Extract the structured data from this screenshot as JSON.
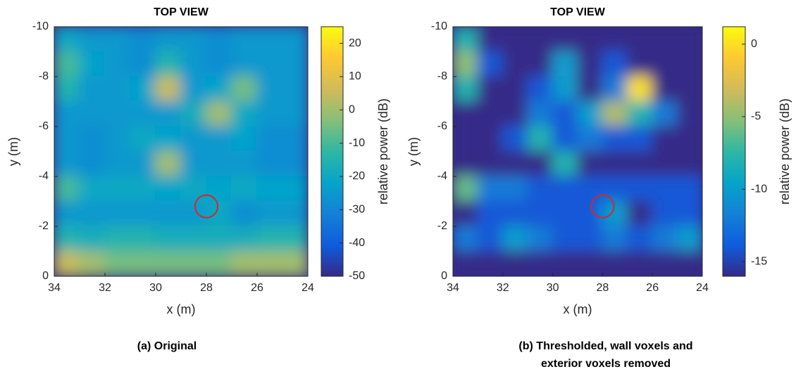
{
  "chart_data": [
    {
      "type": "heatmap",
      "title": "TOP VIEW",
      "xlabel": "x (m)",
      "ylabel": "y (m)",
      "colorbar_label": "relative power (dB)",
      "caption": [
        "(a) Original"
      ],
      "xlim": [
        34,
        24
      ],
      "xticks": [
        34,
        32,
        30,
        28,
        26,
        24
      ],
      "ylim": [
        0,
        -10
      ],
      "yticks": [
        0,
        -2,
        -4,
        -6,
        -8,
        -10
      ],
      "clim": [
        -50,
        25
      ],
      "cticks": [
        -50,
        -40,
        -30,
        -20,
        -10,
        0,
        10,
        20
      ],
      "colormap": [
        "#352a87",
        "#0f5cdd",
        "#1481d6",
        "#06a4ca",
        "#2eb7a4",
        "#87bf77",
        "#d1bb59",
        "#fec832",
        "#f9fb0e"
      ],
      "z": [
        [
          -20,
          -25,
          -25,
          -28,
          -25,
          -25,
          -28,
          -25,
          -25,
          -25
        ],
        [
          -10,
          -22,
          -25,
          -28,
          -15,
          -25,
          -28,
          -25,
          -25,
          -25
        ],
        [
          -15,
          -25,
          -25,
          -22,
          5,
          -25,
          -22,
          -5,
          -25,
          -25
        ],
        [
          -25,
          -25,
          -25,
          -25,
          -25,
          -18,
          0,
          -20,
          -25,
          -25
        ],
        [
          -25,
          -28,
          -25,
          -20,
          -22,
          -25,
          -25,
          -22,
          -28,
          -28
        ],
        [
          -25,
          -28,
          -25,
          -25,
          0,
          -25,
          -25,
          -25,
          -28,
          -28
        ],
        [
          -10,
          -20,
          -20,
          -20,
          -22,
          -20,
          -22,
          -20,
          -22,
          -22
        ],
        [
          -25,
          -25,
          -25,
          -25,
          -25,
          -25,
          -20,
          -28,
          -25,
          -25
        ],
        [
          -15,
          -18,
          -15,
          -15,
          -18,
          -18,
          -18,
          -18,
          -15,
          -15
        ],
        [
          5,
          0,
          -5,
          -5,
          -5,
          -5,
          -5,
          0,
          0,
          0
        ]
      ],
      "marker": {
        "x": 28,
        "y": -2.8,
        "color": "#d62728"
      }
    },
    {
      "type": "heatmap",
      "title": "TOP VIEW",
      "xlabel": "x (m)",
      "ylabel": "y (m)",
      "colorbar_label": "relative power (dB)",
      "caption": [
        "(b) Thresholded, wall voxels and",
        "exterior voxels removed"
      ],
      "xlim": [
        34,
        24
      ],
      "xticks": [
        34,
        32,
        30,
        28,
        26,
        24
      ],
      "ylim": [
        0,
        -10
      ],
      "yticks": [
        0,
        -2,
        -4,
        -6,
        -8,
        -10
      ],
      "clim": [
        -16,
        1.2
      ],
      "cticks": [
        -15,
        -10,
        -5,
        0
      ],
      "colormap": [
        "#352a87",
        "#0f5cdd",
        "#1481d6",
        "#06a4ca",
        "#2eb7a4",
        "#87bf77",
        "#d1bb59",
        "#fec832",
        "#f9fb0e"
      ],
      "z": [
        [
          -8,
          -16,
          -16,
          -16,
          -16,
          -16,
          -16,
          -16,
          -16,
          -16
        ],
        [
          -5,
          -14,
          -16,
          -16,
          -10,
          -16,
          -14,
          -16,
          -16,
          -16
        ],
        [
          -8,
          -16,
          -16,
          -14,
          -10,
          -16,
          -12,
          0,
          -16,
          -16
        ],
        [
          -16,
          -16,
          -16,
          -12,
          -14,
          -10,
          -4,
          -8,
          -12,
          -16
        ],
        [
          -16,
          -16,
          -14,
          -8,
          -14,
          -12,
          -14,
          -14,
          -16,
          -16
        ],
        [
          -16,
          -16,
          -16,
          -16,
          -8,
          -16,
          -16,
          -16,
          -16,
          -16
        ],
        [
          -6,
          -12,
          -12,
          -14,
          -14,
          -14,
          -14,
          -14,
          -14,
          -14
        ],
        [
          -16,
          -14,
          -14,
          -14,
          -14,
          -14,
          -10,
          -16,
          -14,
          -14
        ],
        [
          -12,
          -14,
          -10,
          -12,
          -14,
          -14,
          -12,
          -14,
          -12,
          -10
        ],
        [
          -16,
          -16,
          -16,
          -16,
          -16,
          -16,
          -16,
          -16,
          -16,
          -16
        ]
      ],
      "marker": {
        "x": 28,
        "y": -2.8,
        "color": "#d62728"
      }
    }
  ]
}
